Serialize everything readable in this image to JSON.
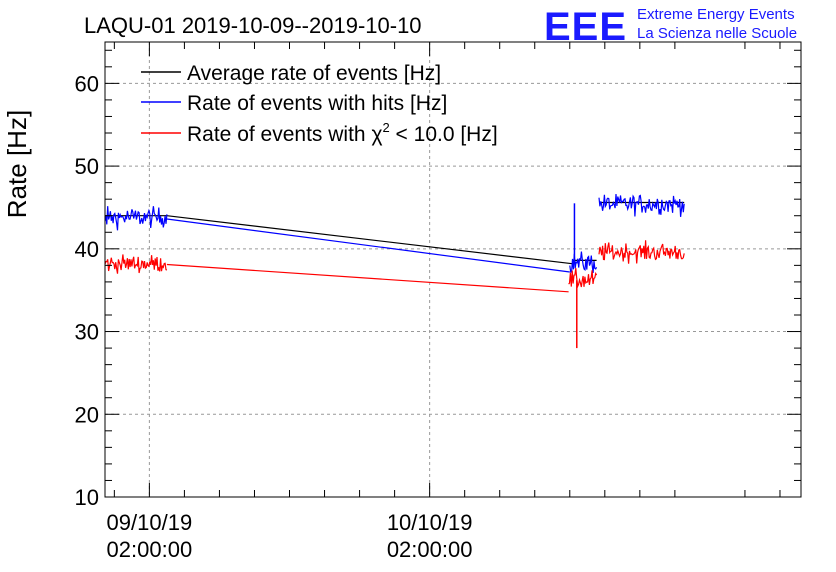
{
  "header": {
    "title": "LAQU-01 2019-10-09--2019-10-10",
    "logo_text": "EEE",
    "logo_line1": "Extreme Energy Events",
    "logo_line2": "La Scienza nelle Scuole"
  },
  "colors": {
    "average": "#000000",
    "hits": "#0000ff",
    "chi2": "#ff0000",
    "logo": "#1a1aff",
    "grid": "#999999"
  },
  "chart_data": {
    "type": "line",
    "ylabel": "Rate [Hz]",
    "xlabel": "",
    "ylim": [
      10,
      65
    ],
    "yticks": [
      10,
      20,
      30,
      40,
      50,
      60
    ],
    "grid": true,
    "legend_position": "top-left",
    "x_unit": "hours since 2019-10-09 00:00",
    "xlim": [
      -1.8,
      57.8
    ],
    "xticks": [
      {
        "x": 2,
        "line1": "09/10/19",
        "line2": "02:00:00"
      },
      {
        "x": 26,
        "line1": "10/10/19",
        "line2": "02:00:00"
      }
    ],
    "legend": [
      {
        "key": "average",
        "label": "Average rate of events [Hz]"
      },
      {
        "key": "hits",
        "label": "Rate of events with hits [Hz]"
      },
      {
        "key": "chi2",
        "label_prefix": "Rate of events with ",
        "label_chi": "χ",
        "label_sup": "2",
        "label_suffix": " < 10.0 [Hz]"
      }
    ],
    "series": [
      {
        "name": "Average rate of events [Hz]",
        "key": "average",
        "segments": [
          {
            "x_start": -3.8,
            "x_end": 3.5,
            "mean": 44.0,
            "noise": 0.0,
            "behind": true
          },
          {
            "x_start": 3.5,
            "x_end": 38.2,
            "points": [
              [
                3.5,
                44.0
              ],
              [
                38.2,
                38.2
              ]
            ]
          },
          {
            "x_start": 38.2,
            "x_end": 40.3,
            "mean": 38.6,
            "noise": 0.0,
            "behind": true
          },
          {
            "x_start": 40.5,
            "x_end": 47.8,
            "mean": 45.6,
            "noise": 0.0,
            "behind": true
          }
        ]
      },
      {
        "name": "Rate of events with hits [Hz]",
        "key": "hits",
        "segments": [
          {
            "x_start": -3.8,
            "x_end": 3.5,
            "mean": 43.8,
            "noise": 0.85
          },
          {
            "x_start": 3.5,
            "x_end": 38.0,
            "points": [
              [
                3.5,
                43.6
              ],
              [
                38.0,
                37.2
              ]
            ]
          },
          {
            "x_start": 38.0,
            "x_end": 40.3,
            "mean": 38.3,
            "noise": 0.9,
            "spike": {
              "x": 38.4,
              "y": 45.5
            }
          },
          {
            "x_start": 40.5,
            "x_end": 47.8,
            "mean": 45.4,
            "noise": 0.85
          }
        ]
      },
      {
        "name": "Rate of events with χ2 < 10.0 [Hz]",
        "key": "chi2",
        "segments": [
          {
            "x_start": -3.8,
            "x_end": 3.5,
            "mean": 38.2,
            "noise": 0.75
          },
          {
            "x_start": 3.5,
            "x_end": 37.9,
            "points": [
              [
                3.5,
                38.1
              ],
              [
                37.9,
                34.8
              ]
            ]
          },
          {
            "x_start": 37.9,
            "x_end": 40.3,
            "mean": 36.2,
            "noise": 0.85,
            "spike": {
              "x": 38.6,
              "y": 28.0
            }
          },
          {
            "x_start": 40.5,
            "x_end": 47.8,
            "mean": 39.6,
            "noise": 0.8
          }
        ]
      }
    ]
  }
}
